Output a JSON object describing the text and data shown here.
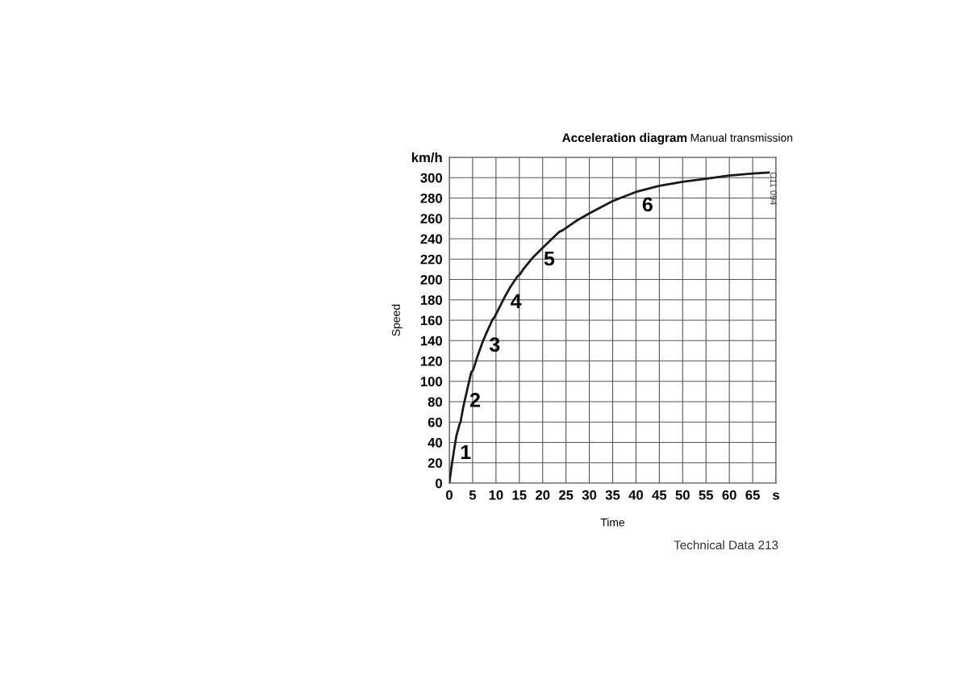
{
  "chart_data": {
    "type": "line",
    "title": "Acceleration diagram",
    "subtitle": "Manual transmission",
    "xlabel": "Time",
    "ylabel": "Speed",
    "series": [
      {
        "color": "#1a1a1a",
        "x": [
          0,
          0.5,
          1,
          1.5,
          2.2,
          2.4,
          3,
          4,
          4.7,
          5.1,
          6,
          7,
          8,
          9.3,
          9.7,
          11,
          12,
          13,
          14,
          14.6,
          15.1,
          16,
          18,
          20,
          22,
          23.6,
          24.2,
          27,
          30,
          35,
          40,
          45,
          50,
          55,
          60,
          65,
          68.5
        ],
        "values": [
          0,
          17,
          32,
          46,
          58,
          60,
          75,
          95,
          109,
          111,
          124,
          137,
          148,
          161,
          163,
          175,
          184,
          192,
          199,
          203,
          205,
          211,
          222,
          231,
          240,
          247,
          248,
          257,
          265,
          277,
          286,
          292,
          296,
          299,
          302,
          304,
          305
        ]
      }
    ],
    "xlim": [
      0,
      70
    ],
    "ylim": [
      0,
      320
    ],
    "xticks": [
      0,
      5,
      10,
      15,
      20,
      25,
      30,
      35,
      40,
      45,
      50,
      55,
      60,
      65,
      {
        "value": 70,
        "label": "s"
      }
    ],
    "yticks": [
      0,
      20,
      40,
      60,
      80,
      100,
      120,
      140,
      160,
      180,
      200,
      220,
      240,
      260,
      280,
      300,
      {
        "value": 320,
        "label": "km/h"
      }
    ],
    "grid": true,
    "marker": "none",
    "line_style": "solid",
    "annotations": [
      "1",
      "2",
      "3",
      "4",
      "5",
      "6",
      "C11 094",
      "Technical Data 213"
    ]
  }
}
